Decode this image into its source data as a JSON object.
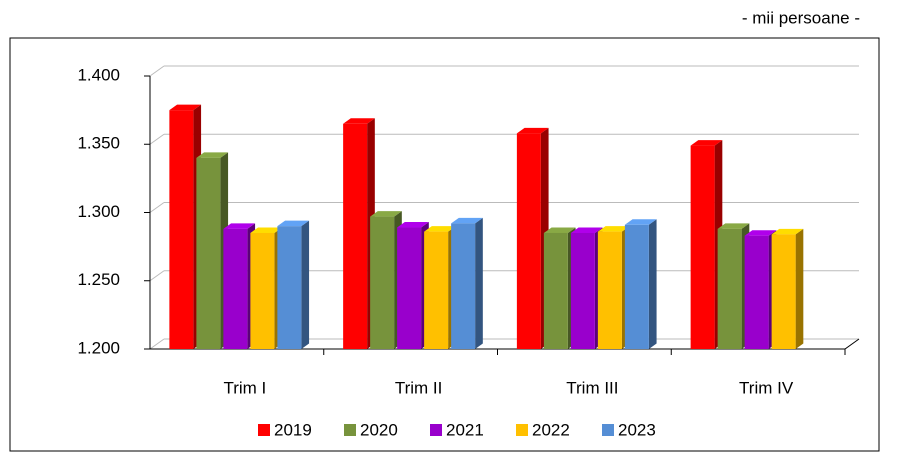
{
  "chart_data": {
    "type": "bar3d",
    "annotation": "- mii persoane -",
    "categories": [
      "Trim I",
      "Trim II",
      "Trim III",
      "Trim IV"
    ],
    "series": [
      {
        "name": "2019",
        "color": "#ff0000",
        "values": [
          1375,
          1365,
          1358,
          1349
        ]
      },
      {
        "name": "2020",
        "color": "#77933c",
        "values": [
          1340,
          1297,
          1285,
          1288
        ]
      },
      {
        "name": "2021",
        "color": "#9900cc",
        "values": [
          1288,
          1289,
          1285,
          1283
        ]
      },
      {
        "name": "2022",
        "color": "#ffc000",
        "values": [
          1285,
          1286,
          1286,
          1284
        ]
      },
      {
        "name": "2023",
        "color": "#558ed5",
        "values": [
          1290,
          1292,
          1291,
          null
        ]
      }
    ],
    "ylim": [
      1200,
      1400
    ],
    "yticks": [
      {
        "value": 1200,
        "label": "1.200"
      },
      {
        "value": 1250,
        "label": "1.250"
      },
      {
        "value": 1300,
        "label": "1.300"
      },
      {
        "value": 1350,
        "label": "1.350"
      },
      {
        "value": 1400,
        "label": "1.400"
      }
    ],
    "grid": true,
    "legend": "bottom"
  }
}
